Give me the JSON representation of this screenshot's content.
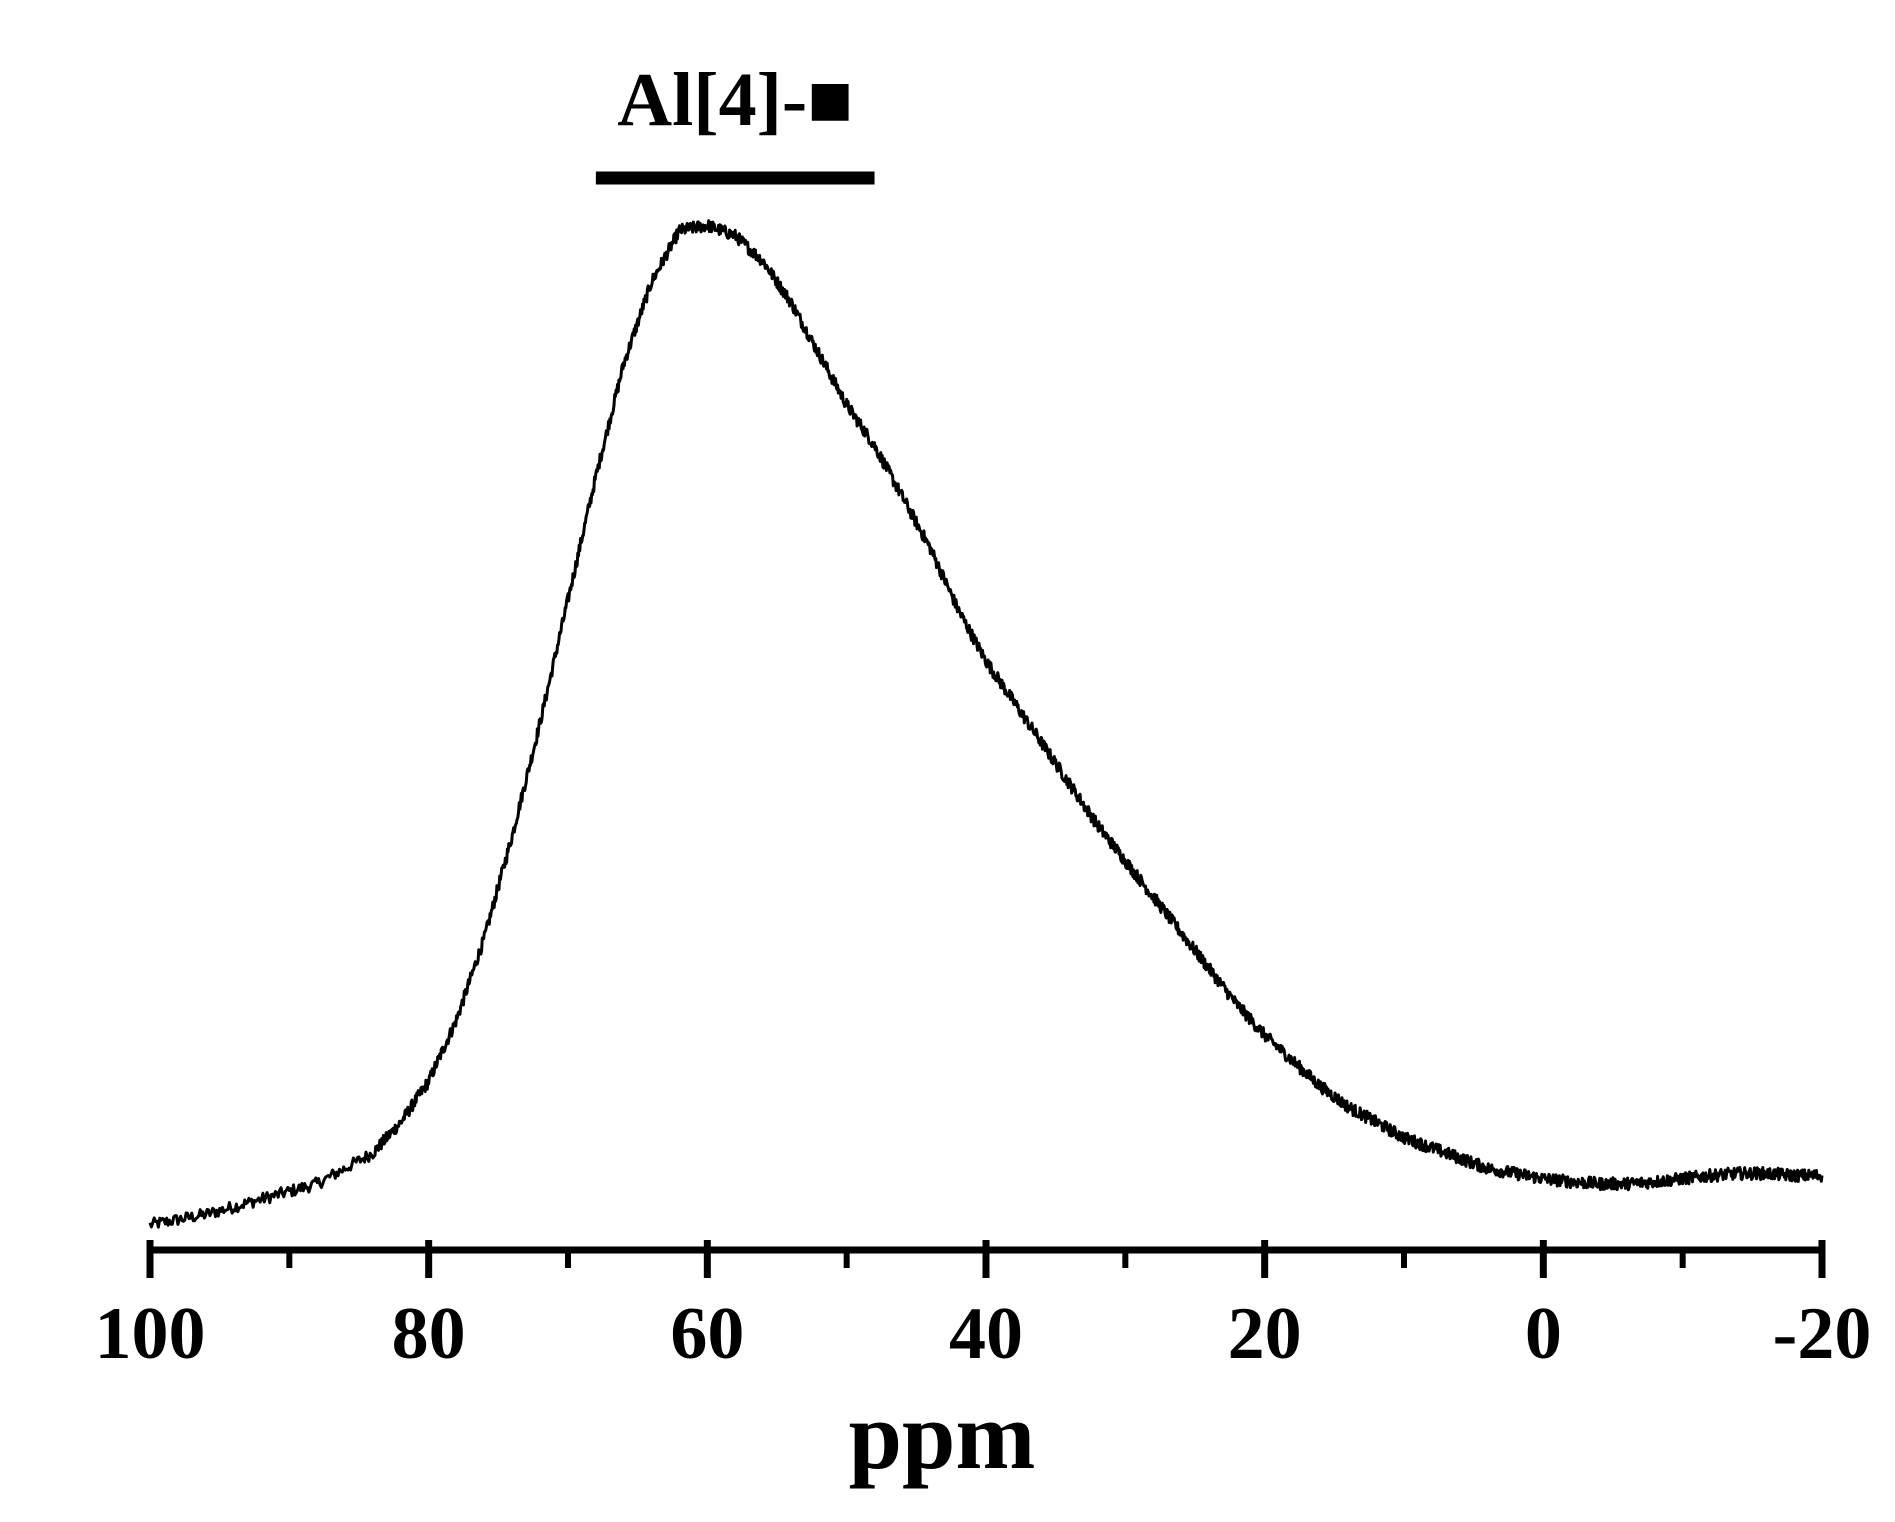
{
  "chart_data": {
    "type": "line",
    "title": "",
    "xlabel": "ppm",
    "ylabel": "",
    "xlim": [
      100,
      -20
    ],
    "x_reversed": true,
    "ylim": [
      0,
      1
    ],
    "grid": false,
    "legend": "none",
    "x_ticks": [
      100,
      80,
      60,
      40,
      20,
      0,
      -20
    ],
    "x_tick_labels": [
      "100",
      "80",
      "60",
      "40",
      "20",
      "0",
      "-20"
    ],
    "x_minor_ticks": [
      90,
      70,
      50,
      30,
      10,
      -10
    ],
    "annotations": [
      {
        "text": "Al[4]-■",
        "x_range": [
          68,
          48
        ],
        "type": "bracket"
      }
    ],
    "series": [
      {
        "color": "#000000",
        "x": [
          100,
          96,
          92,
          88,
          84,
          82,
          80,
          78,
          76,
          74,
          72,
          70,
          68,
          66,
          64,
          62,
          60,
          58,
          56,
          54,
          52,
          50,
          48,
          46,
          44,
          42,
          40,
          38,
          36,
          34,
          32,
          30,
          28,
          26,
          24,
          22,
          20,
          18,
          16,
          14,
          12,
          10,
          8,
          6,
          4,
          2,
          0,
          -2,
          -4,
          -6,
          -8,
          -10,
          -12,
          -14,
          -16,
          -18,
          -20
        ],
        "y": [
          0.01,
          0.02,
          0.035,
          0.05,
          0.08,
          0.11,
          0.15,
          0.21,
          0.29,
          0.39,
          0.5,
          0.62,
          0.74,
          0.85,
          0.93,
          0.98,
          0.985,
          0.975,
          0.95,
          0.91,
          0.86,
          0.81,
          0.77,
          0.72,
          0.67,
          0.61,
          0.56,
          0.52,
          0.48,
          0.44,
          0.4,
          0.365,
          0.33,
          0.295,
          0.26,
          0.225,
          0.195,
          0.17,
          0.145,
          0.125,
          0.11,
          0.095,
          0.085,
          0.075,
          0.065,
          0.06,
          0.055,
          0.052,
          0.05,
          0.05,
          0.052,
          0.055,
          0.058,
          0.06,
          0.06,
          0.058,
          0.058
        ]
      }
    ]
  }
}
